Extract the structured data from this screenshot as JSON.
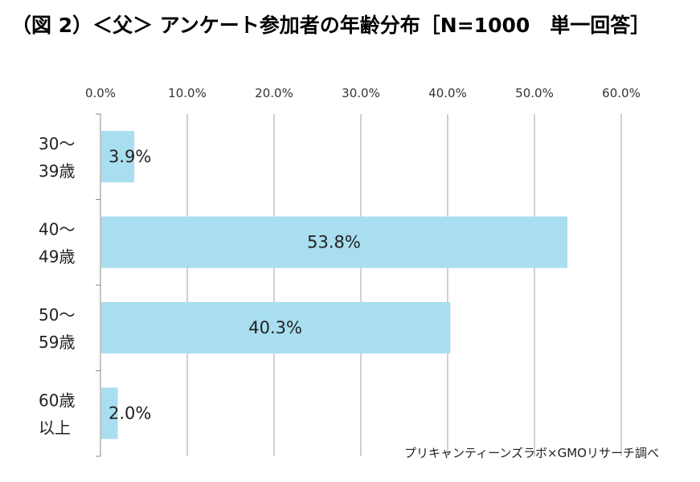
{
  "title": "（図 2）＜父＞ アンケート参加者の年齢分布［N=1000　単一回答］",
  "source": "プリキャンティーンズラボ×GMOリサーチ調べ",
  "colors": {
    "bar": "#a8def0",
    "grid": "#a0a0a0",
    "axis": "#888888"
  },
  "chart_data": {
    "type": "bar",
    "orientation": "horizontal",
    "xlim": [
      0,
      60
    ],
    "xticks": [
      "0.0%",
      "10.0%",
      "20.0%",
      "30.0%",
      "40.0%",
      "50.0%",
      "60.0%"
    ],
    "categories": [
      [
        "30～",
        "39歳"
      ],
      [
        "40～",
        "49歳"
      ],
      [
        "50～",
        "59歳"
      ],
      [
        "60歳",
        "以上"
      ]
    ],
    "values": [
      3.9,
      53.8,
      40.3,
      2.0
    ],
    "data_labels": [
      "3.9%",
      "53.8%",
      "40.3%",
      "2.0%"
    ],
    "grid": true,
    "axis_position": "top"
  }
}
